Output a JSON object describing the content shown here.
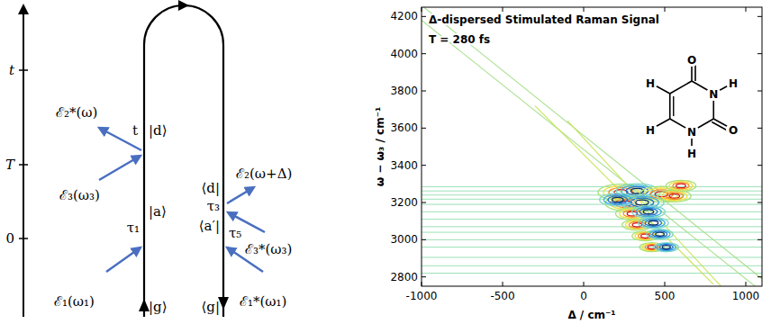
{
  "chart_data": {
    "type": "contour",
    "title": "Δ-dispersed Stimulated Raman Signal",
    "annotation": "T = 280 fs",
    "x_label": "Δ / cm⁻¹",
    "y_label": "ω − ω₃ / cm⁻¹",
    "xlim": [
      -1000,
      1100
    ],
    "ylim": [
      2750,
      4250
    ],
    "xticks": [
      -1000,
      -500,
      0,
      500,
      1000
    ],
    "yticks": [
      2800,
      3000,
      3200,
      3400,
      3600,
      3800,
      4000,
      4200
    ],
    "horizontal_lines": [
      3285,
      3262,
      3240,
      3218,
      3190,
      3150,
      3110,
      3070,
      3040,
      3000,
      2960,
      2905,
      2860,
      2820
    ],
    "diagonal_lines": [
      {
        "x": [
          -1000,
          1100
        ],
        "y": [
          4260,
          2790
        ]
      },
      {
        "x": [
          -1000,
          1100
        ],
        "y": [
          4180,
          2720
        ]
      },
      {
        "x": [
          -300,
          800
        ],
        "y": [
          3720,
          2760
        ]
      },
      {
        "x": [
          -100,
          900
        ],
        "y": [
          3640,
          2700
        ]
      }
    ],
    "peaks": [
      {
        "x": 230,
        "y": 3255,
        "amplitude": 1
      },
      {
        "x": 330,
        "y": 3262,
        "amplitude": -0.8
      },
      {
        "x": 480,
        "y": 3245,
        "amplitude": 0.9
      },
      {
        "x": 260,
        "y": 3195,
        "amplitude": 0.8
      },
      {
        "x": 360,
        "y": 3200,
        "amplitude": -0.9
      },
      {
        "x": 560,
        "y": 3235,
        "amplitude": 0.5
      },
      {
        "x": 210,
        "y": 3215,
        "amplitude": -0.6
      },
      {
        "x": 300,
        "y": 3140,
        "amplitude": 0.5
      },
      {
        "x": 400,
        "y": 3150,
        "amplitude": -0.5
      },
      {
        "x": 330,
        "y": 3080,
        "amplitude": 0.4
      },
      {
        "x": 430,
        "y": 3090,
        "amplitude": -0.4
      },
      {
        "x": 380,
        "y": 3020,
        "amplitude": 0.3
      },
      {
        "x": 470,
        "y": 3030,
        "amplitude": -0.3
      },
      {
        "x": 420,
        "y": 2960,
        "amplitude": 0.25
      },
      {
        "x": 510,
        "y": 2960,
        "amplitude": -0.25
      },
      {
        "x": 600,
        "y": 3290,
        "amplitude": 0.4
      }
    ],
    "molecule": [
      "O",
      "H",
      "H",
      "N",
      "H",
      "N",
      "O",
      "H"
    ]
  },
  "diagram": {
    "time_axis": [
      "t",
      "T",
      "0"
    ],
    "fields": [
      "ℰ₁(ω₁)",
      "ℰ₁*(ω₁)",
      "ℰ₃(ω₃)",
      "ℰ₂*(ω)",
      "ℰ₂(ω+Δ)",
      "ℰ₃*(ω₃)"
    ],
    "ket_labels": [
      "|g⟩",
      "τ₁",
      "|a⟩",
      "t",
      "|d⟩"
    ],
    "bra_labels": [
      "⟨g|",
      "τ₅",
      "⟨a′|",
      "τ₃",
      "⟨d|"
    ]
  }
}
